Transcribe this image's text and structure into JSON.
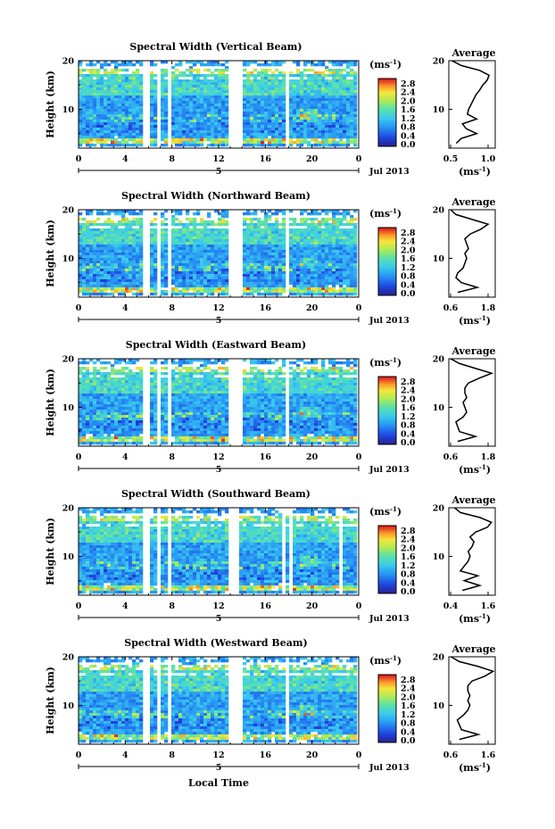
{
  "chart_data": [
    {
      "type": "heatmap",
      "title": "Spectral Width (Vertical Beam)",
      "ylabel": "Height (km)",
      "xlim": [
        0,
        24
      ],
      "ylim": [
        2,
        20
      ],
      "xticks": [
        "0",
        "4",
        "8",
        "12",
        "16",
        "20",
        "0"
      ],
      "yticks": [
        "10",
        "20"
      ],
      "date_label": "5",
      "month_label": "Jul 2013",
      "colorbar": {
        "unit": "(ms",
        "unit_sup": "-1",
        "unit_close": ")",
        "ticks": [
          "2.8",
          "2.4",
          "2.0",
          "1.6",
          "1.2",
          "0.8",
          "0.4",
          "0.0"
        ]
      },
      "gaps_hours": [
        [
          5.6,
          6.0
        ],
        [
          6.7,
          7.0
        ],
        [
          7.5,
          7.8
        ],
        [
          12.8,
          14.0
        ],
        [
          17.7,
          17.9
        ]
      ],
      "average": {
        "title": "Average",
        "xlabel": "(ms",
        "xlabel_sup": "-1",
        "xlabel_close": ")",
        "xlim": [
          0.5,
          1.25
        ],
        "xticks": [
          "0.5",
          "1.0"
        ],
        "yticks": [
          "10",
          "20"
        ],
        "height_km": [
          3,
          4,
          5,
          6,
          7,
          8,
          9,
          10,
          11,
          12,
          13,
          14,
          15,
          16,
          17,
          18,
          19,
          20
        ],
        "values": [
          0.62,
          0.7,
          0.95,
          0.78,
          0.72,
          0.95,
          0.8,
          0.82,
          0.86,
          0.9,
          0.94,
          1.0,
          1.05,
          1.12,
          1.15,
          1.0,
          0.7,
          0.55
        ]
      }
    },
    {
      "type": "heatmap",
      "title": "Spectral Width (Northward Beam)",
      "ylabel": "Height (km)",
      "xlim": [
        0,
        24
      ],
      "ylim": [
        2,
        20
      ],
      "xticks": [
        "0",
        "4",
        "8",
        "12",
        "16",
        "20",
        "0"
      ],
      "yticks": [
        "10",
        "20"
      ],
      "date_label": "5",
      "month_label": "Jul 2013",
      "colorbar": {
        "unit": "(ms",
        "unit_sup": "-1",
        "unit_close": ")",
        "ticks": [
          "2.8",
          "2.4",
          "2.0",
          "1.6",
          "1.2",
          "0.8",
          "0.4",
          "0.0"
        ]
      },
      "gaps_hours": [
        [
          5.6,
          6.0
        ],
        [
          6.7,
          7.0
        ],
        [
          7.5,
          7.8
        ],
        [
          12.8,
          14.0
        ],
        [
          17.7,
          17.9
        ]
      ],
      "average": {
        "title": "Average",
        "xlabel": "(ms",
        "xlabel_sup": "-1",
        "xlabel_close": ")",
        "xlim": [
          0.55,
          1.85
        ],
        "xticks": [
          "0.6",
          "1.8"
        ],
        "yticks": [
          "10",
          "20"
        ],
        "height_km": [
          3,
          4,
          5,
          6,
          7,
          8,
          9,
          10,
          11,
          12,
          13,
          14,
          15,
          16,
          17,
          18,
          19,
          20
        ],
        "values": [
          0.8,
          1.35,
          0.9,
          0.75,
          0.8,
          0.95,
          1.0,
          1.05,
          1.0,
          1.1,
          1.05,
          1.0,
          1.15,
          1.45,
          1.65,
          1.2,
          0.75,
          0.6
        ]
      }
    },
    {
      "type": "heatmap",
      "title": "Spectral Width (Eastward Beam)",
      "ylabel": "Height (km)",
      "xlim": [
        0,
        24
      ],
      "ylim": [
        2,
        20
      ],
      "xticks": [
        "0",
        "4",
        "8",
        "12",
        "16",
        "20",
        "0"
      ],
      "yticks": [
        "10",
        "20"
      ],
      "date_label": "5",
      "month_label": "Jul 2013",
      "colorbar": {
        "unit": "(ms",
        "unit_sup": "-1",
        "unit_close": ")",
        "ticks": [
          "2.8",
          "2.4",
          "2.0",
          "1.6",
          "1.2",
          "0.8",
          "0.4",
          "0.0"
        ]
      },
      "gaps_hours": [
        [
          5.6,
          6.0
        ],
        [
          6.7,
          7.0
        ],
        [
          7.5,
          7.8
        ],
        [
          12.8,
          14.0
        ],
        [
          17.7,
          17.9
        ]
      ],
      "average": {
        "title": "Average",
        "xlabel": "(ms",
        "xlabel_sup": "-1",
        "xlabel_close": ")",
        "xlim": [
          0.55,
          1.85
        ],
        "xticks": [
          "0.6",
          "1.8"
        ],
        "yticks": [
          "10",
          "20"
        ],
        "height_km": [
          3,
          4,
          5,
          6,
          7,
          8,
          9,
          10,
          11,
          12,
          13,
          14,
          15,
          16,
          17,
          18,
          19,
          20
        ],
        "values": [
          0.8,
          1.3,
          0.85,
          0.8,
          0.75,
          0.95,
          1.05,
          1.0,
          0.95,
          1.05,
          1.0,
          1.0,
          1.1,
          1.4,
          1.75,
          1.3,
          0.85,
          0.6
        ]
      }
    },
    {
      "type": "heatmap",
      "title": "Spectral Width (Southward Beam)",
      "ylabel": "Height (km)",
      "xlim": [
        0,
        24
      ],
      "ylim": [
        2,
        20
      ],
      "xticks": [
        "0",
        "4",
        "8",
        "12",
        "16",
        "20",
        "0"
      ],
      "yticks": [
        "10",
        "20"
      ],
      "date_label": "5",
      "month_label": "Jul 2013",
      "colorbar": {
        "unit": "(ms",
        "unit_sup": "-1",
        "unit_close": ")",
        "ticks": [
          "2.8",
          "2.4",
          "2.0",
          "1.6",
          "1.2",
          "0.8",
          "0.4",
          "0.0"
        ]
      },
      "gaps_hours": [
        [
          5.6,
          6.0
        ],
        [
          6.7,
          7.0
        ],
        [
          7.5,
          7.8
        ],
        [
          12.8,
          13.9
        ],
        [
          17.4,
          17.6
        ],
        [
          18.0,
          18.2
        ],
        [
          22.4,
          22.6
        ]
      ],
      "average": {
        "title": "Average",
        "xlabel": "(ms",
        "xlabel_sup": "-1",
        "xlabel_close": ")",
        "xlim": [
          0.4,
          1.6
        ],
        "xticks": [
          "0.4",
          "1.6"
        ],
        "yticks": [
          "10",
          "20"
        ],
        "height_km": [
          3,
          4,
          5,
          6,
          7,
          8,
          9,
          10,
          11,
          12,
          13,
          14,
          15,
          16,
          17,
          18,
          19,
          20
        ],
        "values": [
          0.75,
          1.2,
          0.8,
          1.15,
          0.7,
          0.8,
          0.9,
          0.95,
          0.9,
          1.0,
          1.05,
          0.95,
          1.1,
          1.4,
          1.5,
          1.2,
          0.7,
          0.55
        ]
      }
    },
    {
      "type": "heatmap",
      "title": "Spectral Width (Westward Beam)",
      "ylabel": "Height (km)",
      "xlabel": "Local Time",
      "xlim": [
        0,
        24
      ],
      "ylim": [
        2,
        20
      ],
      "xticks": [
        "0",
        "4",
        "8",
        "12",
        "16",
        "20",
        "0"
      ],
      "yticks": [
        "10",
        "20"
      ],
      "date_label": "5",
      "month_label": "Jul 2013",
      "colorbar": {
        "unit": "(ms",
        "unit_sup": "-1",
        "unit_close": ")",
        "ticks": [
          "2.8",
          "2.4",
          "2.0",
          "1.6",
          "1.2",
          "0.8",
          "0.4",
          "0.0"
        ]
      },
      "gaps_hours": [
        [
          5.6,
          6.0
        ],
        [
          6.7,
          7.0
        ],
        [
          7.5,
          7.8
        ],
        [
          12.8,
          14.0
        ],
        [
          17.7,
          17.9
        ]
      ],
      "average": {
        "title": "Average",
        "xlabel": "(ms",
        "xlabel_sup": "-1",
        "xlabel_close": ")",
        "xlim": [
          0.55,
          1.65
        ],
        "xticks": [
          "0.6",
          "1.6"
        ],
        "yticks": [
          "10",
          "20"
        ],
        "height_km": [
          3,
          4,
          5,
          6,
          7,
          8,
          9,
          10,
          11,
          12,
          13,
          14,
          15,
          16,
          17,
          18,
          19,
          20
        ],
        "values": [
          0.8,
          1.25,
          0.85,
          0.8,
          0.75,
          0.9,
          1.0,
          1.05,
          1.0,
          1.05,
          1.0,
          1.0,
          1.1,
          1.4,
          1.6,
          1.25,
          0.8,
          0.6
        ]
      }
    }
  ]
}
